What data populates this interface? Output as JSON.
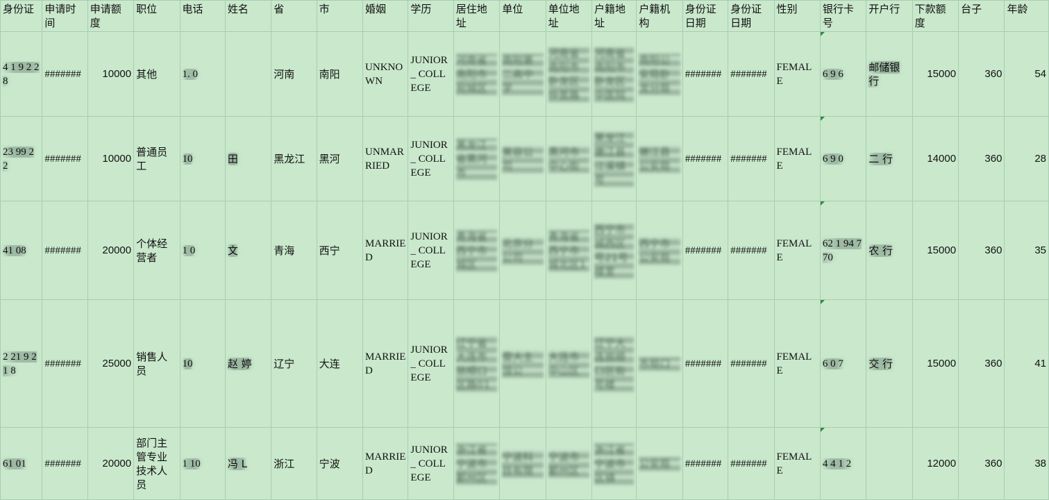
{
  "sheet": {
    "headers": [
      "身份证",
      "申请时间",
      "申请额度",
      "职位",
      "电话",
      "姓名",
      "省",
      "市",
      "婚姻",
      "学历",
      "居住地址",
      "单位",
      "单位地址",
      "户籍地址",
      "户籍机构",
      "身份证日期",
      "身份证日期",
      "性别",
      "银行卡号",
      "开户行",
      "下款额度",
      "台子",
      "年龄"
    ],
    "rows": [
      {
        "id_card": "4 1 9 2 28",
        "apply_time": "#######",
        "amount": "10000",
        "position": "其他",
        "phone": "1. 0",
        "name": "",
        "province": "河南",
        "city": "南阳",
        "marital": "UNKNOWN",
        "education": "JUNIOR_ COLLEGE",
        "address": "河南省南阳市宛城区",
        "employer": "南阳第二高中学",
        "employer_address": "河南省南阳市卧龙区仲景路",
        "hukou_address": "河南省南阳市卧龙区中医院",
        "hukou_office": "南阳公安局卧龙分局",
        "id_date1": "#######",
        "id_date2": "#######",
        "gender": "FEMALE",
        "bank_card": "6 9 6",
        "bank": "邮储银行",
        "loan_amount": "15000",
        "platform": "360",
        "age": "54"
      },
      {
        "id_card": "23 99 2 2",
        "apply_time": "#######",
        "amount": "10000",
        "position": "普通员工",
        "phone": "10",
        "name": "田",
        "province": "黑龙江",
        "city": "黑河",
        "marital": "UNMARRIED",
        "education": "JUNIOR_ COLLEGE",
        "address": "黑龙江省黑河市",
        "employer": "美容公司",
        "employer_address": "黑河市中心街",
        "hukou_address": "黑龙江嫩江县江溪镇号",
        "hukou_office": "嫩江县公安局",
        "id_date1": "#######",
        "id_date2": "#######",
        "gender": "FEMALE",
        "bank_card": "6 9 0",
        "bank": "二 行",
        "loan_amount": "14000",
        "platform": "360",
        "age": "28"
      },
      {
        "id_card": "41 08",
        "apply_time": "#######",
        "amount": "20000",
        "position": "个体经营者",
        "phone": "1 0",
        "name": "文",
        "province": "青海",
        "city": "西宁",
        "marital": "MARRIED",
        "education": "JUNIOR_ COLLEGE",
        "address": "青海省西宁市城区",
        "employer": "北京分公司",
        "employer_address": "青海省西宁市城北区1",
        "hukou_address": "西宁市城西区号21号楼室",
        "hukou_office": "西宁市公安局",
        "id_date1": "#######",
        "id_date2": "#######",
        "gender": "FEMALE",
        "bank_card": "62 1 94 7 70",
        "bank": "农 行",
        "loan_amount": "15000",
        "platform": "360",
        "age": "35"
      },
      {
        "id_card": "2 21 9 21 8",
        "apply_time": "#######",
        "amount": "25000",
        "position": "销售人员",
        "phone": "10",
        "name": "赵 婷",
        "province": "辽宁",
        "city": "大连",
        "marital": "MARRIED",
        "education": "JUNIOR_ COLLEGE",
        "address": "辽宁省大连市旅顺口区路01",
        "employer": "壹大主馆公",
        "employer_address": "大连市中山区",
        "hukou_address": "辽宁大连旅顺口区街号楼",
        "hukou_office": "市局口",
        "id_date1": "#######",
        "id_date2": "#######",
        "gender": "FEMALE",
        "bank_card": "6 0 7",
        "bank": "交 行",
        "loan_amount": "15000",
        "platform": "360",
        "age": "41"
      },
      {
        "id_card": "61 01",
        "apply_time": "#######",
        "amount": "20000",
        "position": "部门主管专业技术人员",
        "phone": "1 10",
        "name": "冯 L",
        "province": "浙江",
        "city": "宁波",
        "marital": "MARRIED",
        "education": "JUNIOR_ COLLEGE",
        "address": "浙江省宁波市鄞州区",
        "employer": "宁波科技有限",
        "employer_address": "宁波市鄞州区",
        "hukou_address": "浙江省宁波市区镇",
        "hukou_office": "公安局",
        "id_date1": "#######",
        "id_date2": "#######",
        "gender": "FEMALE",
        "bank_card": "4 4 1 2",
        "bank": "",
        "loan_amount": "12000",
        "platform": "360",
        "age": "38"
      }
    ]
  }
}
